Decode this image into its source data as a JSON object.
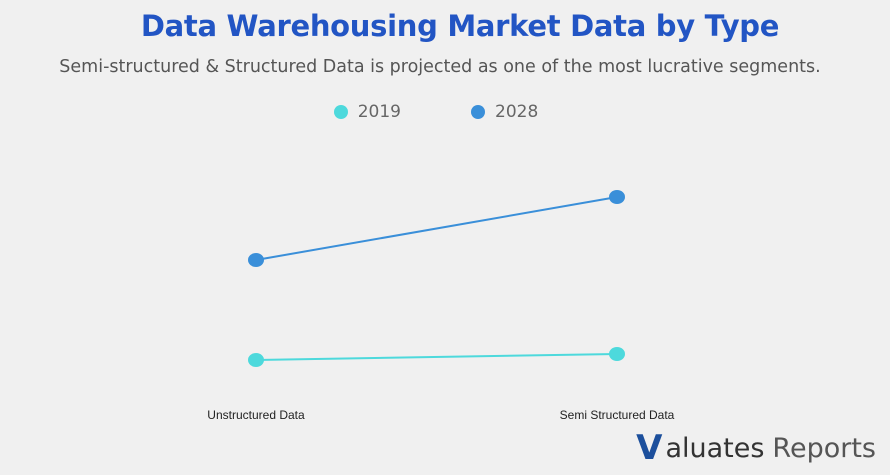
{
  "colors": {
    "title": "#2255c4",
    "series_2019": "#4dd9dc",
    "series_2028": "#3a8fd9",
    "brand_mark": "#1c4f9c"
  },
  "header": {
    "title": "Data Warehousing Market Data by Type",
    "subtitle": "Semi-structured & Structured Data is projected as one of the most lucrative segments."
  },
  "brand": {
    "mark": "V",
    "word": "aluates",
    "suffix": "Reports"
  },
  "chart_data": {
    "type": "line",
    "categories": [
      "Unstructured Data",
      "Semi Structured Data"
    ],
    "series": [
      {
        "name": "2019",
        "values": [
          4.0,
          4.6
        ]
      },
      {
        "name": "2028",
        "values": [
          14.0,
          20.3
        ]
      }
    ],
    "ylim": [
      0,
      27
    ],
    "grid": false,
    "legend": "top-center",
    "title": "",
    "xlabel": "",
    "ylabel": ""
  }
}
